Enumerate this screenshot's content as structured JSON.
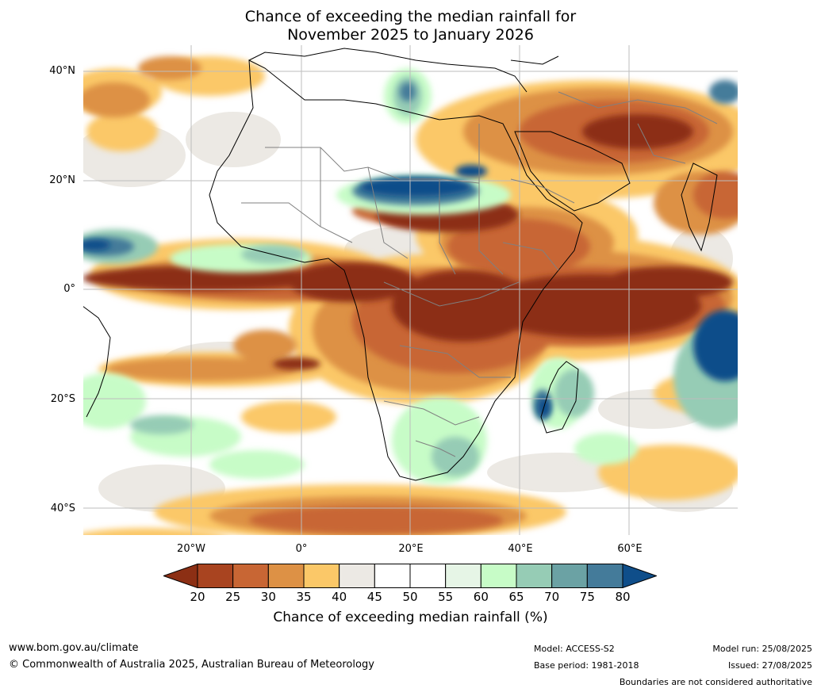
{
  "title": {
    "line1": "Chance of exceeding the median rainfall for",
    "line2": "November 2025 to January 2026"
  },
  "axes": {
    "lat_labels": [
      "40°N",
      "20°N",
      "0°",
      "20°S",
      "40°S"
    ],
    "lon_labels": [
      "20°W",
      "0°",
      "20°E",
      "40°E",
      "60°E"
    ]
  },
  "colorbar": {
    "label": "Chance of exceeding median rainfall (%)",
    "ticks": [
      "20",
      "25",
      "30",
      "35",
      "40",
      "45",
      "50",
      "55",
      "60",
      "65",
      "70",
      "75",
      "80"
    ],
    "colors": [
      "#8c2f14",
      "#a94420",
      "#c86634",
      "#dd9145",
      "#fbc868",
      "#ece9e4",
      "#ffffff",
      "#ffffff",
      "#e6f5e6",
      "#c7fcc7",
      "#96ccb5",
      "#6ba2a4",
      "#447b9a",
      "#0f4e8a"
    ]
  },
  "footer": {
    "website": "www.bom.gov.au/climate",
    "copyright": "© Commonwealth of Australia 2025, Australian Bureau of Meteorology",
    "model": "Model: ACCESS-S2",
    "base_period": "Base period: 1981-2018",
    "model_run": "Model run: 25/08/2025",
    "issued": "Issued: 27/08/2025",
    "disclaimer": "Boundaries are not considered authoritative"
  }
}
